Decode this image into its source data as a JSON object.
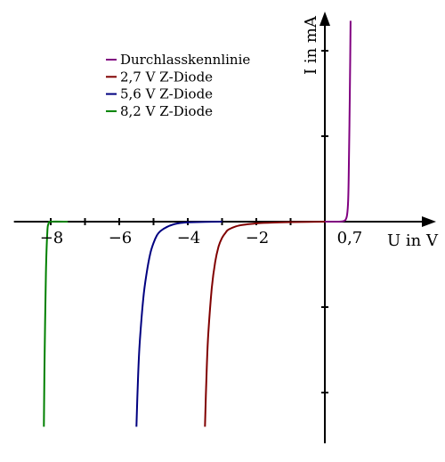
{
  "chart_data": {
    "type": "line",
    "xlabel": "U in V",
    "ylabel": "I in mA",
    "x_ticks": [
      -8,
      -7,
      -6,
      -5,
      -4,
      -3,
      -2,
      -1
    ],
    "x_tick_labels": [
      {
        "value": -8,
        "text": "−8"
      },
      {
        "value": -6,
        "text": "−6"
      },
      {
        "value": -4,
        "text": "−4"
      },
      {
        "value": -2,
        "text": "−2"
      },
      {
        "value": 0.7,
        "text": "0,7"
      }
    ],
    "y_ticks": [
      -2,
      -1,
      1,
      2
    ],
    "xlim": [
      -9.1,
      3.3
    ],
    "ylim": [
      -2.6,
      2.5
    ],
    "grid": false,
    "legend_position": "top-left",
    "series": [
      {
        "name": "Durchlasskennlinie",
        "color": "#800080",
        "x": [
          0.0,
          0.3,
          0.5,
          0.6,
          0.65,
          0.68,
          0.7,
          0.72,
          0.74,
          0.75
        ],
        "y": [
          0.0,
          0.0,
          0.002,
          0.02,
          0.08,
          0.25,
          0.6,
          1.2,
          1.9,
          2.35
        ]
      },
      {
        "name": "2,7 V Z-Diode",
        "color": "#800000",
        "x": [
          -3.5,
          -3.45,
          -3.4,
          -3.3,
          -3.2,
          -3.1,
          -3.0,
          -2.9,
          -2.8,
          -2.5,
          -2.0,
          -1.5,
          -1.0,
          -0.5,
          0.0
        ],
        "y": [
          -2.4,
          -1.75,
          -1.3,
          -0.78,
          -0.47,
          -0.29,
          -0.19,
          -0.13,
          -0.09,
          -0.045,
          -0.02,
          -0.01,
          -0.005,
          -0.002,
          0.0
        ]
      },
      {
        "name": "5,6 V Z-Diode",
        "color": "#000080",
        "x": [
          -5.5,
          -5.45,
          -5.4,
          -5.3,
          -5.2,
          -5.1,
          -5.0,
          -4.9,
          -4.8,
          -4.6,
          -4.4,
          -4.2,
          -4.0,
          -3.5,
          -3.0
        ],
        "y": [
          -2.4,
          -1.8,
          -1.4,
          -0.9,
          -0.6,
          -0.38,
          -0.25,
          -0.16,
          -0.11,
          -0.06,
          -0.03,
          -0.015,
          -0.008,
          -0.002,
          0.0
        ]
      },
      {
        "name": "8,2 V Z-Diode",
        "color": "#008000",
        "x": [
          -8.2,
          -8.18,
          -8.14,
          -8.1,
          -8.07,
          -8.05,
          -8.0,
          -7.5
        ],
        "y": [
          -2.4,
          -1.6,
          -0.6,
          -0.12,
          -0.03,
          -0.01,
          0.0,
          0.0
        ]
      }
    ]
  }
}
